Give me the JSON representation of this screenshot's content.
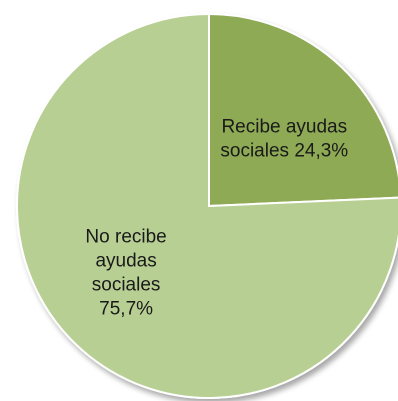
{
  "chart_data": {
    "type": "pie",
    "title": "",
    "start": "top",
    "direction": "clockwise",
    "slices": [
      {
        "name": "Recibe ayudas sociales",
        "value": 24.3,
        "color": "#8eaa55",
        "label_lines": [
          "Recibe ayudas",
          "sociales 24,3%"
        ]
      },
      {
        "name": "No recibe ayudas sociales",
        "value": 75.7,
        "color": "#b8cf93",
        "label_lines": [
          "No recibe",
          "ayudas",
          "sociales",
          "75,7%"
        ]
      }
    ],
    "legend": "none"
  }
}
